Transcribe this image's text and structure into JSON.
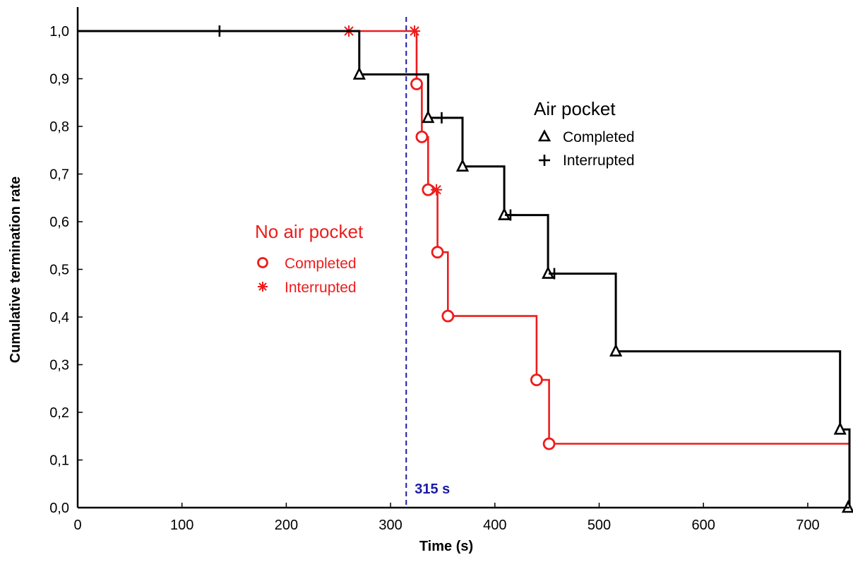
{
  "chart_data": {
    "type": "line",
    "step": true,
    "xlabel": "Time (s)",
    "ylabel": "Cumulative termination rate",
    "xlim": [
      0,
      740
    ],
    "ylim": [
      0,
      1.0
    ],
    "x_ticks": [
      0,
      100,
      200,
      300,
      400,
      500,
      600,
      700
    ],
    "x_tick_labels": [
      "0",
      "100",
      "200",
      "300",
      "400",
      "500",
      "600",
      "700"
    ],
    "y_ticks": [
      0,
      0.1,
      0.2,
      0.3,
      0.4,
      0.5,
      0.6,
      0.7,
      0.8,
      0.9,
      1.0
    ],
    "y_tick_labels": [
      "0,0",
      "0,1",
      "0,2",
      "0,3",
      "0,4",
      "0,5",
      "0,6",
      "0,7",
      "0,8",
      "0,9",
      "1,0"
    ],
    "grid": false,
    "reference_line": {
      "x": 315,
      "label": "315 s",
      "color": "#1a1aa6"
    },
    "series": [
      {
        "name": "No air pocket",
        "color": "#ee1c1c",
        "steps": [
          [
            0,
            1.0
          ],
          [
            325,
            1.0
          ],
          [
            325,
            0.889
          ],
          [
            330,
            0.889
          ],
          [
            330,
            0.778
          ],
          [
            336,
            0.778
          ],
          [
            336,
            0.667
          ],
          [
            345,
            0.667
          ],
          [
            345,
            0.536
          ],
          [
            355,
            0.536
          ],
          [
            355,
            0.402
          ],
          [
            440,
            0.402
          ],
          [
            440,
            0.268
          ],
          [
            452,
            0.268
          ],
          [
            452,
            0.134
          ],
          [
            740,
            0.134
          ]
        ],
        "completed": [
          [
            325,
            0.889
          ],
          [
            330,
            0.778
          ],
          [
            336,
            0.667
          ],
          [
            345,
            0.536
          ],
          [
            355,
            0.402
          ],
          [
            440,
            0.268
          ],
          [
            452,
            0.134
          ]
        ],
        "interrupted": [
          [
            260,
            1.0
          ],
          [
            323,
            1.0
          ],
          [
            344,
            0.667
          ]
        ]
      },
      {
        "name": "Air pocket",
        "color": "#000000",
        "steps": [
          [
            0,
            1.0
          ],
          [
            270,
            1.0
          ],
          [
            270,
            0.909
          ],
          [
            336,
            0.909
          ],
          [
            336,
            0.818
          ],
          [
            369,
            0.818
          ],
          [
            369,
            0.716
          ],
          [
            409,
            0.716
          ],
          [
            409,
            0.614
          ],
          [
            451,
            0.614
          ],
          [
            451,
            0.491
          ],
          [
            516,
            0.491
          ],
          [
            516,
            0.328
          ],
          [
            731,
            0.328
          ],
          [
            731,
            0.164
          ],
          [
            740,
            0.164
          ],
          [
            740,
            0.0
          ]
        ],
        "completed": [
          [
            270,
            0.909
          ],
          [
            336,
            0.818
          ],
          [
            369,
            0.716
          ],
          [
            409,
            0.614
          ],
          [
            451,
            0.491
          ],
          [
            516,
            0.328
          ],
          [
            731,
            0.164
          ],
          [
            740,
            0.0
          ]
        ],
        "interrupted": [
          [
            136,
            1.0
          ],
          [
            349,
            0.818
          ],
          [
            415,
            0.614
          ],
          [
            457,
            0.491
          ]
        ]
      }
    ],
    "legends": [
      {
        "title": "No air pocket",
        "color": "#ee1c1c",
        "items": [
          "Completed",
          "Interrupted"
        ]
      },
      {
        "title": "Air pocket",
        "color": "#000000",
        "items": [
          "Completed",
          "Interrupted"
        ]
      }
    ]
  }
}
